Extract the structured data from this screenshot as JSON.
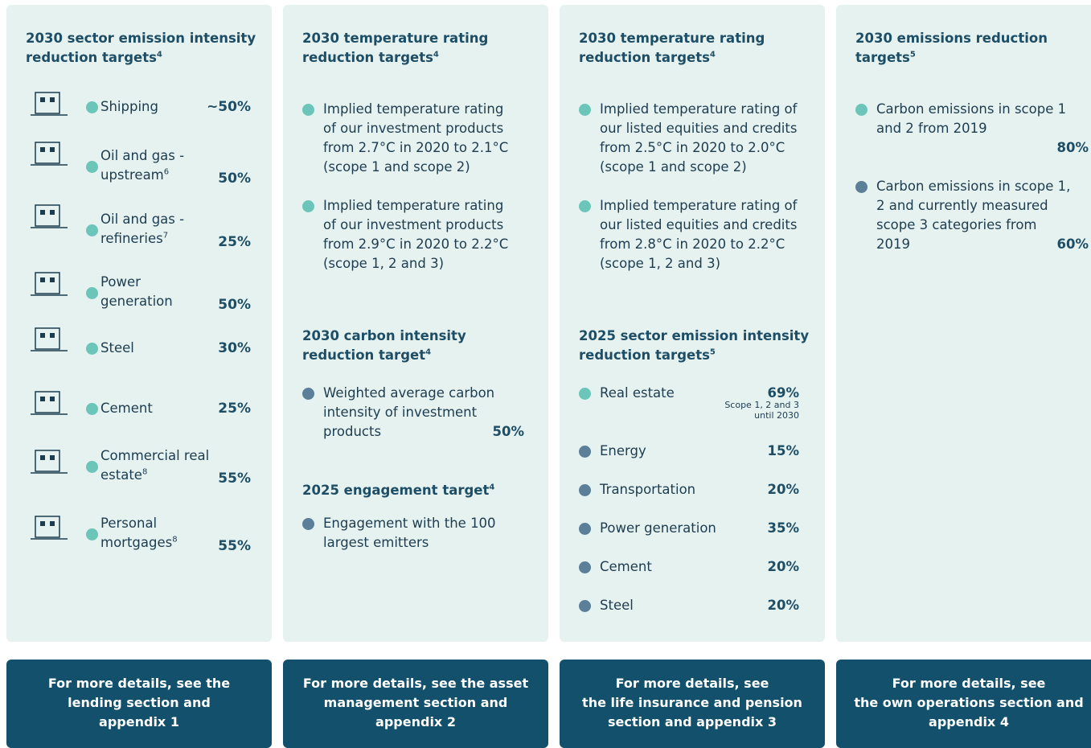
{
  "columns": [
    {
      "sections": [
        {
          "title": "2030 sector emission intensity reduction targets",
          "sup": "4",
          "items": [
            {
              "label": "Shipping",
              "value": "~50%",
              "color": "#6cc5b9"
            },
            {
              "label": "Oil and gas - upstream",
              "sup": "6",
              "value": "50%",
              "color": "#6cc5b9"
            },
            {
              "label": "Oil and gas - refineries",
              "sup": "7",
              "value": "25%",
              "color": "#6cc5b9"
            },
            {
              "label": "Power generation",
              "value": "50%",
              "color": "#6cc5b9"
            },
            {
              "label": "Steel",
              "value": "30%",
              "color": "#6cc5b9"
            },
            {
              "label": "Cement",
              "value": "25%",
              "color": "#6cc5b9"
            },
            {
              "label": "Commercial real estate",
              "sup": "8",
              "value": "55%",
              "color": "#6cc5b9"
            },
            {
              "label": "Personal mortgages",
              "sup": "8",
              "value": "55%",
              "color": "#6cc5b9"
            }
          ]
        }
      ],
      "footer": [
        "For more details, see the",
        "lending section and",
        "appendix 1"
      ]
    },
    {
      "sections": [
        {
          "title": "2030 temperature rating reduction targets",
          "sup": "4",
          "items": [
            {
              "label": "Implied temperature rating of our investment products from 2.7°C in 2020 to 2.1°C (scope 1 and scope 2)",
              "color": "#6cc5b9"
            },
            {
              "label": "Implied temperature rating of our investment products from 2.9°C in 2020 to 2.2°C (scope 1, 2 and 3)",
              "color": "#6cc5b9"
            }
          ]
        },
        {
          "title": "2030 carbon intensity reduction target",
          "sup": "4",
          "items": [
            {
              "label": "Weighted average carbon intensity of investment products",
              "value": "50%",
              "color": "#5b7f99"
            }
          ]
        },
        {
          "title": "2025 engagement target",
          "sup": "4",
          "items": [
            {
              "label": "Engagement with the 100 largest emitters",
              "color": "#5b7f99"
            }
          ]
        }
      ],
      "footer": [
        "For more details, see the asset",
        "management section and",
        "appendix 2"
      ]
    },
    {
      "sections": [
        {
          "title": "2030 temperature rating reduction targets",
          "sup": "4",
          "items": [
            {
              "label": "Implied temperature rating of our listed equities and credits from 2.5°C in 2020 to 2.0°C (scope 1 and scope 2)",
              "color": "#6cc5b9"
            },
            {
              "label": "Implied temperature rating of our listed equities and credits from 2.8°C in 2020 to 2.2°C (scope 1, 2 and 3)",
              "color": "#6cc5b9"
            }
          ]
        },
        {
          "title": "2025 sector emission intensity reduction targets",
          "sup": "5",
          "items": [
            {
              "label": "Real estate",
              "value": "69%",
              "note": "Scope 1, 2 and 3 until 2030",
              "color": "#6cc5b9"
            },
            {
              "label": "Energy",
              "value": "15%",
              "color": "#5b7f99"
            },
            {
              "label": "Transportation",
              "value": "20%",
              "color": "#5b7f99"
            },
            {
              "label": "Power generation",
              "value": "35%",
              "color": "#5b7f99"
            },
            {
              "label": "Cement",
              "value": "20%",
              "color": "#5b7f99"
            },
            {
              "label": "Steel",
              "value": "20%",
              "color": "#5b7f99"
            }
          ]
        }
      ],
      "footer": [
        "For more details, see",
        "the life insurance and pension",
        "section and appendix 3"
      ]
    },
    {
      "sections": [
        {
          "title": "2030 emissions reduction targets",
          "sup": "5",
          "items": [
            {
              "label": "Carbon emissions in scope 1 and 2 from 2019",
              "value": "80%",
              "color": "#6cc5b9"
            },
            {
              "label": "Carbon emissions in scope 1, 2 and currently measured scope 3 categories from 2019",
              "value": "60%",
              "color": "#5b7f99"
            }
          ]
        }
      ],
      "footer": [
        "For more details, see",
        "the own operations section and",
        "appendix 4"
      ]
    }
  ]
}
